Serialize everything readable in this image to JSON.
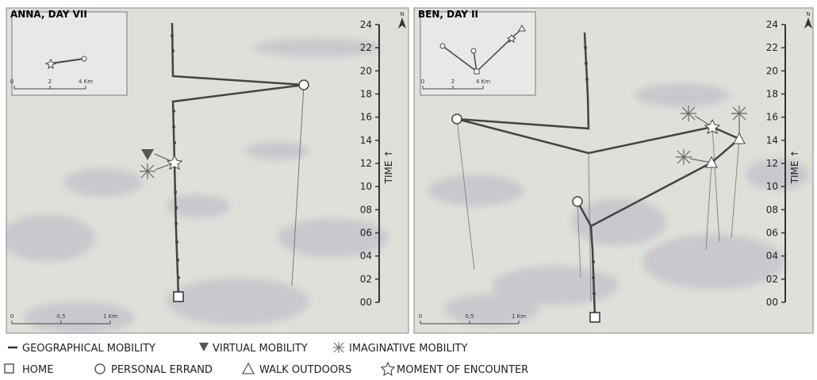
{
  "panels": [
    {
      "title": "ANNA, DAY VII",
      "north": "N",
      "axis_label": "TIME ↑",
      "ticks": [
        "00",
        "02",
        "04",
        "06",
        "08",
        "10",
        "12",
        "14",
        "16",
        "18",
        "20",
        "22",
        "24"
      ],
      "scale": [
        "0",
        "0,5",
        "1 Km"
      ],
      "inset_scale": [
        "0",
        "2",
        "4 Km"
      ]
    },
    {
      "title": "BEN, DAY II",
      "north": "N",
      "axis_label": "TIME ↑",
      "ticks": [
        "00",
        "02",
        "04",
        "06",
        "08",
        "10",
        "12",
        "14",
        "16",
        "18",
        "20",
        "22",
        "24"
      ],
      "scale": [
        "0",
        "0,5",
        "1 Km"
      ],
      "inset_scale": [
        "0",
        "2",
        "4 Km"
      ]
    }
  ],
  "legend": {
    "row1": [
      "GEOGRAPHICAL MOBILITY",
      "VIRTUAL MOBILITY",
      "IMAGINATIVE MOBILITY"
    ],
    "row2": [
      "HOME",
      "PERSONAL ERRAND",
      "WALK OUTDOORS",
      "MOMENT OF ENCOUNTER"
    ]
  }
}
